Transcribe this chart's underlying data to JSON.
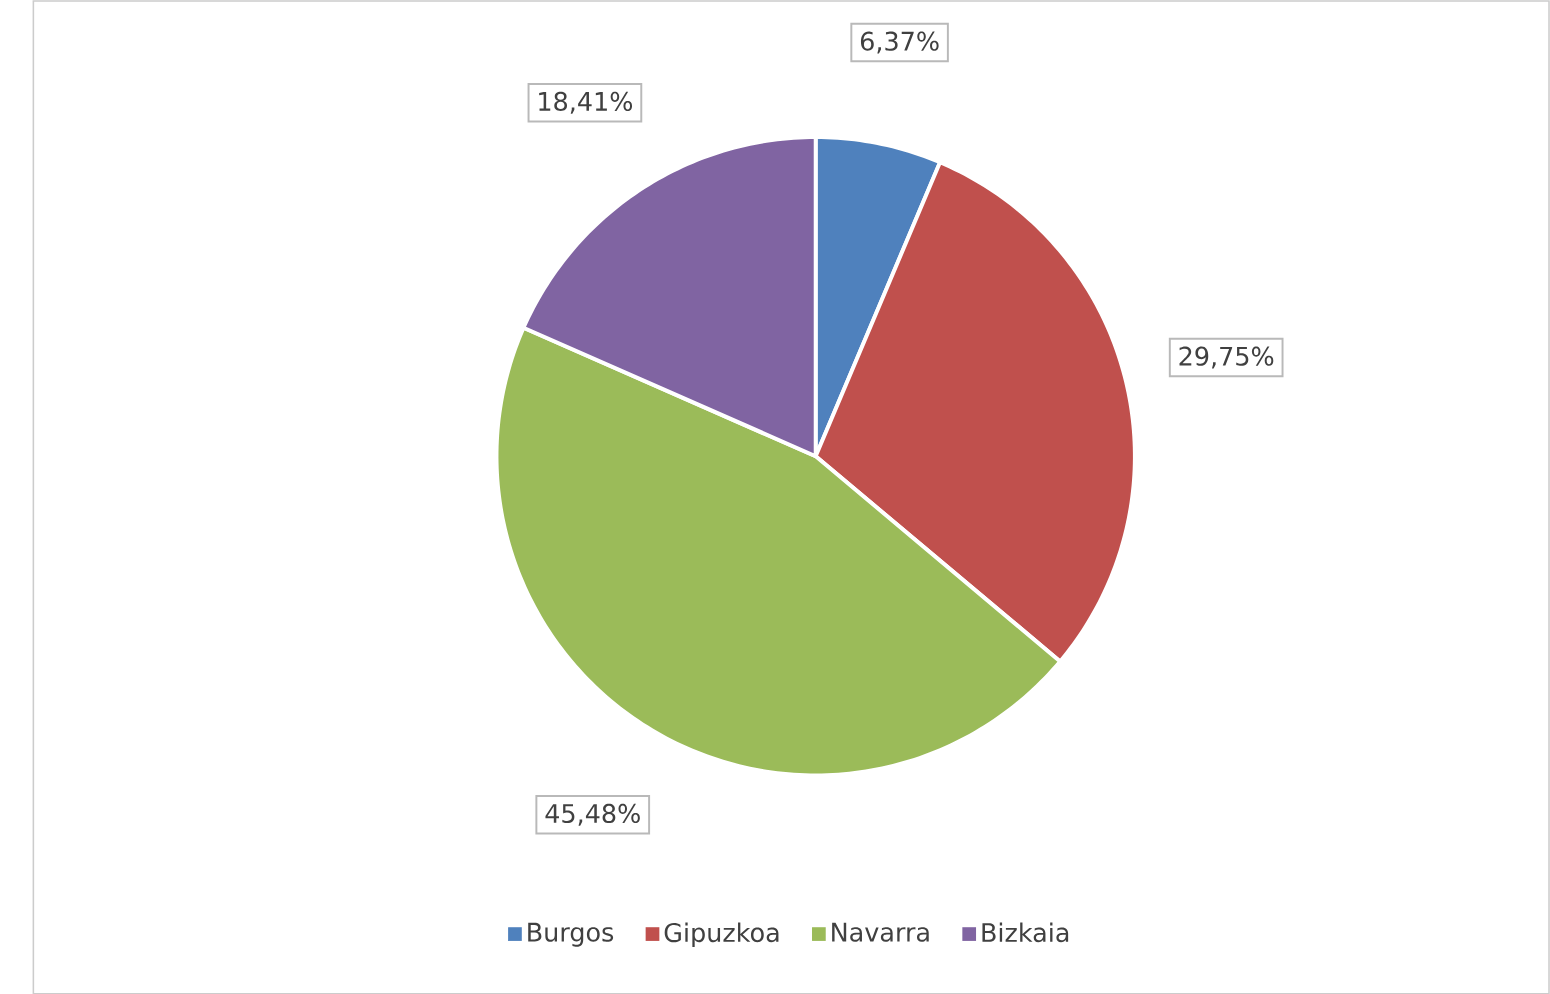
{
  "chart_data": {
    "type": "pie",
    "categories": [
      "Burgos",
      "Gipuzkoa",
      "Navarra",
      "Bizkaia"
    ],
    "values": [
      6.37,
      29.75,
      45.48,
      18.41
    ],
    "colors": [
      "#4f81bd",
      "#c0504d",
      "#9bbb59",
      "#8064a2"
    ],
    "value_labels": [
      "6,37%",
      "29,75%",
      "45,48%",
      "18,41%"
    ],
    "legend": "bottom"
  }
}
